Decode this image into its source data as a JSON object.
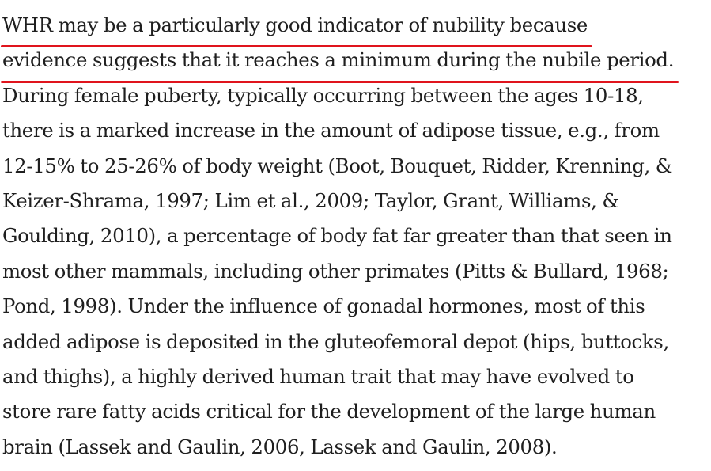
{
  "document": {
    "highlight_color": "#e0141d",
    "lines": [
      "WHR may be a particularly good indicator of nubility because",
      "evidence suggests that it reaches a minimum during the nubile period.",
      "During female puberty, typically occurring between the ages 10-18,",
      "there is a marked increase in the amount of adipose tissue, e.g., from",
      "12-15% to 25-26% of body weight (Boot, Bouquet, Ridder, Krenning, &",
      "Keizer-Shrama, 1997; Lim et al., 2009; Taylor, Grant, Williams, &",
      "Goulding, 2010), a percentage of body fat far greater than that seen in",
      "most other mammals, including other primates (Pitts & Bullard, 1968;",
      "Pond, 1998). Under the influence of gonadal hormones, most of this",
      "added adipose is deposited in the gluteofemoral depot (hips, buttocks,",
      "and thighs), a highly derived human trait that may have evolved to",
      "store rare fatty acids critical for the development of the large human",
      "brain (Lassek and Gaulin, 2006, Lassek and Gaulin, 2008)."
    ]
  }
}
